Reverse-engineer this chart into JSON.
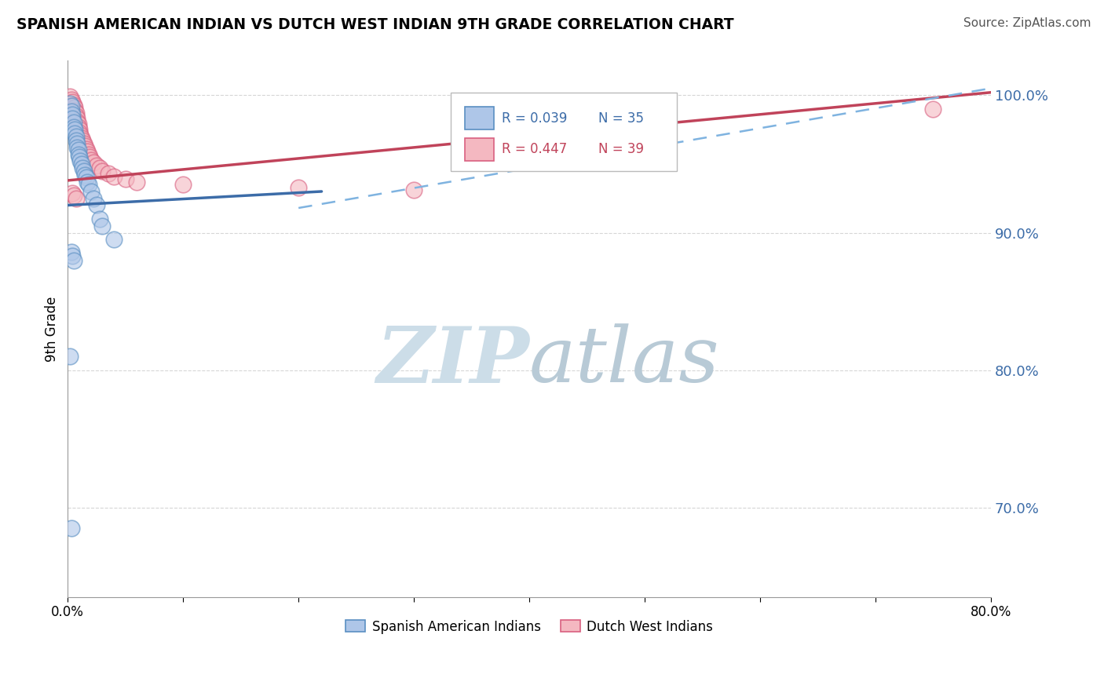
{
  "title": "SPANISH AMERICAN INDIAN VS DUTCH WEST INDIAN 9TH GRADE CORRELATION CHART",
  "source": "Source: ZipAtlas.com",
  "ylabel": "9th Grade",
  "legend_blue_label": "Spanish American Indians",
  "legend_pink_label": "Dutch West Indians",
  "blue_R": "R = 0.039",
  "blue_N": "N = 35",
  "pink_R": "R = 0.447",
  "pink_N": "N = 39",
  "xlim": [
    0.0,
    0.8
  ],
  "ylim": [
    0.635,
    1.025
  ],
  "yticks_right": [
    0.7,
    0.8,
    0.9,
    1.0
  ],
  "ytick_labels_right": [
    "70.0%",
    "80.0%",
    "90.0%",
    "100.0%"
  ],
  "xticks": [
    0.0,
    0.1,
    0.2,
    0.3,
    0.4,
    0.5,
    0.6,
    0.7,
    0.8
  ],
  "xtick_labels": [
    "0.0%",
    "",
    "",
    "",
    "",
    "",
    "",
    "",
    "80.0%"
  ],
  "blue_scatter_x": [
    0.002,
    0.003,
    0.003,
    0.004,
    0.004,
    0.005,
    0.005,
    0.006,
    0.006,
    0.007,
    0.007,
    0.008,
    0.008,
    0.009,
    0.009,
    0.01,
    0.011,
    0.012,
    0.013,
    0.014,
    0.015,
    0.016,
    0.017,
    0.018,
    0.02,
    0.022,
    0.025,
    0.028,
    0.03,
    0.04,
    0.003,
    0.004,
    0.005,
    0.002,
    0.003
  ],
  "blue_scatter_y": [
    0.994,
    0.992,
    0.988,
    0.986,
    0.983,
    0.98,
    0.977,
    0.975,
    0.972,
    0.97,
    0.967,
    0.965,
    0.962,
    0.96,
    0.957,
    0.955,
    0.952,
    0.95,
    0.947,
    0.945,
    0.942,
    0.94,
    0.937,
    0.935,
    0.93,
    0.925,
    0.92,
    0.91,
    0.905,
    0.895,
    0.886,
    0.883,
    0.88,
    0.81,
    0.685
  ],
  "pink_scatter_x": [
    0.002,
    0.003,
    0.004,
    0.005,
    0.006,
    0.006,
    0.007,
    0.007,
    0.008,
    0.008,
    0.009,
    0.009,
    0.01,
    0.01,
    0.011,
    0.012,
    0.013,
    0.014,
    0.015,
    0.016,
    0.017,
    0.018,
    0.019,
    0.02,
    0.022,
    0.025,
    0.028,
    0.03,
    0.035,
    0.04,
    0.05,
    0.06,
    0.1,
    0.2,
    0.3,
    0.004,
    0.005,
    0.75,
    0.007
  ],
  "pink_scatter_y": [
    0.999,
    0.997,
    0.995,
    0.993,
    0.991,
    0.989,
    0.987,
    0.985,
    0.983,
    0.981,
    0.979,
    0.977,
    0.975,
    0.973,
    0.971,
    0.969,
    0.967,
    0.965,
    0.963,
    0.961,
    0.959,
    0.957,
    0.955,
    0.953,
    0.951,
    0.949,
    0.947,
    0.945,
    0.943,
    0.941,
    0.939,
    0.937,
    0.935,
    0.933,
    0.931,
    0.929,
    0.927,
    0.99,
    0.925
  ],
  "blue_color": "#aec6e8",
  "pink_color": "#f4b8c1",
  "blue_edge_color": "#5a8fc2",
  "pink_edge_color": "#d96080",
  "blue_line_color": "#3c6ca8",
  "pink_line_color": "#c0435a",
  "dashed_line_color": "#7fb3e0",
  "watermark_zip_color": "#d8e8f0",
  "watermark_atlas_color": "#c0d0dc",
  "background_color": "#ffffff",
  "grid_color": "#cccccc",
  "blue_trend_x": [
    0.0,
    0.22
  ],
  "blue_trend_y": [
    0.92,
    0.93
  ],
  "pink_trend_x": [
    0.0,
    0.8
  ],
  "pink_trend_y": [
    0.938,
    1.002
  ],
  "dash_trend_x": [
    0.2,
    0.8
  ],
  "dash_trend_y": [
    0.918,
    1.005
  ]
}
